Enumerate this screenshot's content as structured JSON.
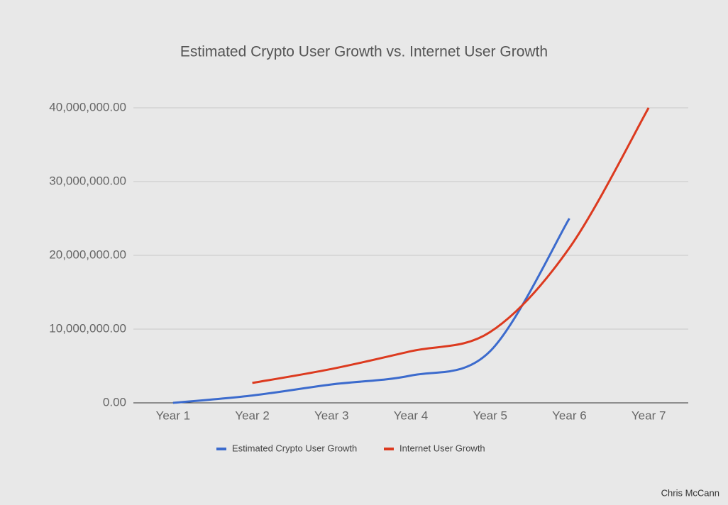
{
  "chart_data": {
    "type": "line",
    "title": "Estimated Crypto User Growth vs. Internet User Growth",
    "categories": [
      "Year 1",
      "Year 2",
      "Year 3",
      "Year 4",
      "Year 5",
      "Year 6",
      "Year 7"
    ],
    "series": [
      {
        "name": "Estimated Crypto User Growth",
        "color": "#3c6bcd",
        "values": [
          0,
          1000000,
          2500000,
          3700000,
          7000000,
          25000000,
          null
        ]
      },
      {
        "name": "Internet User Growth",
        "color": "#dc3a1f",
        "values": [
          null,
          2700000,
          4600000,
          7000000,
          9600000,
          21000000,
          40000000
        ]
      }
    ],
    "ylim": [
      0,
      40000000
    ],
    "yticks": [
      {
        "value": 0,
        "label": "0.00"
      },
      {
        "value": 10000000,
        "label": "10,000,000.00"
      },
      {
        "value": 20000000,
        "label": "20,000,000.00"
      },
      {
        "value": 30000000,
        "label": "30,000,000.00"
      },
      {
        "value": 40000000,
        "label": "40,000,000.00"
      }
    ],
    "grid": true,
    "legend": "bottom",
    "credit": "Chris McCann"
  }
}
